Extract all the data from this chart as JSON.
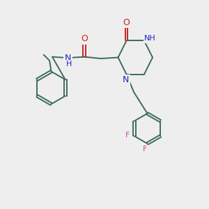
{
  "bg_color": "#eeeeee",
  "bond_color": "#3d6b5e",
  "n_color": "#2222cc",
  "o_color": "#cc2222",
  "f_color": "#cc44aa",
  "line_width": 1.4,
  "font_size": 8.0,
  "fig_size": [
    3.0,
    3.0
  ],
  "dpi": 100,
  "xlim": [
    0,
    10
  ],
  "ylim": [
    0,
    10
  ]
}
